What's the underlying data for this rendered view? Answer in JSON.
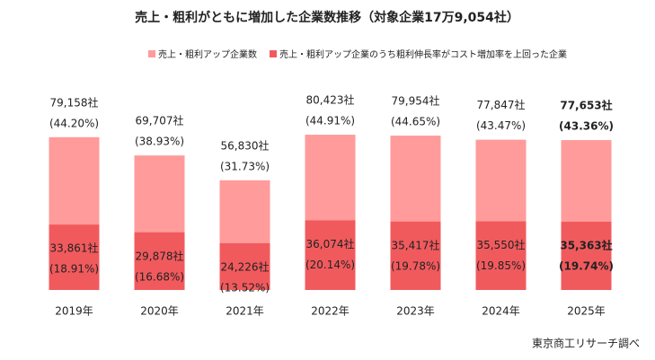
{
  "chart_data": {
    "type": "overlap_bar",
    "title": "売上・粗利がともに増加した企業数推移（対象企業17万9,054社）",
    "categories": [
      "2019年",
      "2020年",
      "2021年",
      "2022年",
      "2023年",
      "2024年",
      "2025年"
    ],
    "series": [
      {
        "name": "売上・粗利アップ企業数",
        "color": "#ff9b9b",
        "values": [
          79158,
          69707,
          56830,
          80423,
          79954,
          77847,
          77653
        ],
        "value_labels": [
          "79,158社",
          "69,707社",
          "56,830社",
          "80,423社",
          "79,954社",
          "77,847社",
          "77,653社"
        ],
        "share_labels": [
          "(44.20%)",
          "(38.93%)",
          "(31.73%)",
          "(44.91%)",
          "(44.65%)",
          "(43.47%)",
          "(43.36%)"
        ]
      },
      {
        "name": "売上・粗利アップ企業のうち粗利伸長率がコスト増加率を上回った企業",
        "color": "#f15a5d",
        "values": [
          33861,
          29878,
          24226,
          36074,
          35417,
          35550,
          35363
        ],
        "value_labels": [
          "33,861社",
          "29,878社",
          "24,226社",
          "36,074社",
          "35,417社",
          "35,550社",
          "35,363社"
        ],
        "share_labels": [
          "(18.91%)",
          "(16.68%)",
          "(13.52%)",
          "(20.14%)",
          "(19.78%)",
          "(19.85%)",
          "(19.74%)"
        ]
      }
    ],
    "highlight_last": true,
    "source": "東京商工リサーチ調べ"
  }
}
